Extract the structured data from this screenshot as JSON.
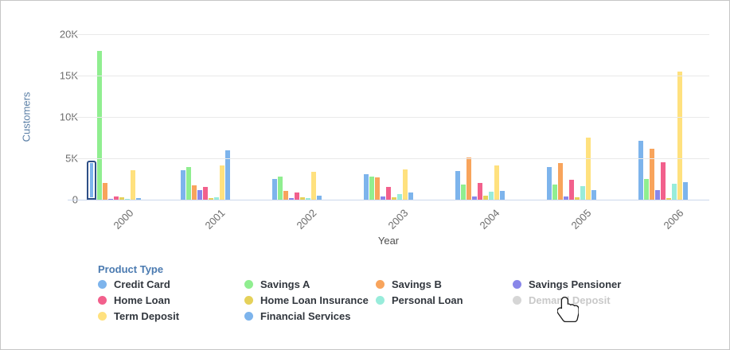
{
  "chart": {
    "y_axis": {
      "title": "Customers",
      "ticks": [
        {
          "label": "0",
          "value": 0
        },
        {
          "label": "5K",
          "value": 5000
        },
        {
          "label": "10K",
          "value": 10000
        },
        {
          "label": "15K",
          "value": 15000
        },
        {
          "label": "20K",
          "value": 20000
        }
      ]
    },
    "x_axis": {
      "title": "Year"
    }
  },
  "chart_data": {
    "type": "bar",
    "title": "",
    "xlabel": "Year",
    "ylabel": "Customers",
    "ylim": [
      0,
      20000
    ],
    "grid": true,
    "legend_position": "bottom",
    "categories": [
      "2000",
      "2001",
      "2002",
      "2003",
      "2004",
      "2005",
      "2006"
    ],
    "series": [
      {
        "name": "Credit Card",
        "color": "#7db4ec",
        "values": [
          4300,
          3600,
          2500,
          3100,
          3500,
          3900,
          7100
        ]
      },
      {
        "name": "Savings A",
        "color": "#90ee90",
        "values": [
          18000,
          3900,
          2800,
          2800,
          1800,
          1800,
          2500
        ]
      },
      {
        "name": "Savings B",
        "color": "#f8a45c",
        "values": [
          2000,
          1700,
          1100,
          2700,
          5100,
          4400,
          6200
        ]
      },
      {
        "name": "Savings Pensioner",
        "color": "#8987e9",
        "values": [
          50,
          1200,
          200,
          400,
          400,
          350,
          1200
        ]
      },
      {
        "name": "Home Loan",
        "color": "#f2608c",
        "values": [
          400,
          1500,
          900,
          1500,
          2000,
          2400,
          4500
        ]
      },
      {
        "name": "Home Loan Insurance",
        "color": "#e5d15a",
        "values": [
          250,
          150,
          250,
          300,
          500,
          300,
          150
        ]
      },
      {
        "name": "Personal Loan",
        "color": "#98ecdb",
        "values": [
          50,
          250,
          200,
          700,
          1000,
          1600,
          1900
        ]
      },
      {
        "name": "Term Deposit",
        "color": "#ffe17e",
        "values": [
          3600,
          4100,
          3400,
          3700,
          4100,
          7500,
          15500
        ]
      },
      {
        "name": "Financial Services",
        "color": "#7db4ec",
        "values": [
          150,
          6000,
          500,
          900,
          1100,
          1200,
          2100
        ]
      }
    ],
    "disabled_series": [
      "Demand Deposit"
    ],
    "selected": {
      "series": "Credit Card",
      "category": "2000",
      "category_index": 0,
      "highlight_color": "#2e4f86"
    }
  },
  "legend": {
    "title": "Product Type",
    "items": [
      {
        "label": "Credit Card",
        "color": "#7db4ec",
        "enabled": true
      },
      {
        "label": "Savings A",
        "color": "#90ee90",
        "enabled": true
      },
      {
        "label": "Savings B",
        "color": "#f8a45c",
        "enabled": true
      },
      {
        "label": "Savings Pensioner",
        "color": "#8987e9",
        "enabled": true
      },
      {
        "label": "Home Loan",
        "color": "#f2608c",
        "enabled": true
      },
      {
        "label": "Home Loan Insurance",
        "color": "#e5d15a",
        "enabled": true
      },
      {
        "label": "Personal Loan",
        "color": "#98ecdb",
        "enabled": true
      },
      {
        "label": "Demand Deposit",
        "color": "#d6d6d6",
        "enabled": false
      },
      {
        "label": "Term Deposit",
        "color": "#ffe17e",
        "enabled": true
      },
      {
        "label": "Financial Services",
        "color": "#7db4ec",
        "enabled": true
      }
    ]
  },
  "cursor": {
    "icon": "hand-pointer",
    "over": "Demand Deposit"
  },
  "colors": {
    "grid": "#e9e9e9",
    "zero_line": "#ccd7ec",
    "axis_tick_text": "#6b6b6b",
    "y_axis_title": "#5b7fa6",
    "legend_title": "#4a7ab0",
    "legend_text": "#32373e",
    "legend_disabled_text": "#c9c9c9",
    "selection_border": "#2e4f86"
  }
}
